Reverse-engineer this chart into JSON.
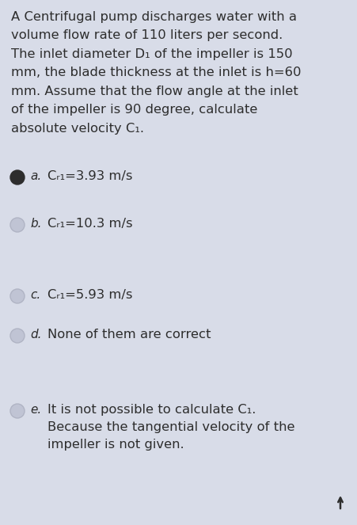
{
  "background_color": "#d8dce8",
  "text_color": "#2d2d2d",
  "question_lines": [
    "A Centrifugal pump discharges water with a",
    "volume flow rate of 110 liters per second.",
    "The inlet diameter D₁ of the impeller is 150",
    "mm, the blade thickness at the inlet is h=60",
    "mm. Assume that the flow angle at the inlet",
    "of the impeller is 90 degree, calculate",
    "absolute velocity C₁."
  ],
  "options": [
    {
      "label": "a.",
      "text": "Cᵣ₁=3.93 m/s",
      "selected": true,
      "multiline": false
    },
    {
      "label": "b.",
      "text": "Cᵣ₁=10.3 m/s",
      "selected": false,
      "multiline": false
    },
    {
      "label": "c.",
      "text": "Cᵣ₁=5.93 m/s",
      "selected": false,
      "multiline": false
    },
    {
      "label": "d.",
      "text": "None of them are correct",
      "selected": false,
      "multiline": false
    },
    {
      "label": "e.",
      "text": "It is not possible to calculate C₁.\nBecause the tangential velocity of the\nimpeller is not given.",
      "selected": false,
      "multiline": true
    }
  ],
  "selected_fill": "#2d2d2d",
  "unselected_fill": "#c0c4d4",
  "unselected_edge": "#b0b4c4",
  "arrow_color": "#2d2d2d",
  "font_size_question": 11.8,
  "font_size_options": 11.8,
  "font_size_label": 11.0
}
